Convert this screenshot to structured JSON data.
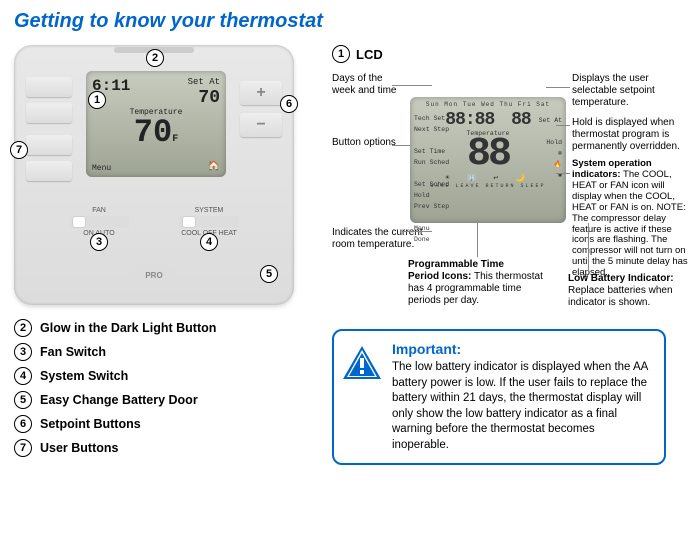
{
  "title": "Getting to know your thermostat",
  "colors": {
    "accent": "#0066cc",
    "lcd_bg": "#b6bca9",
    "body": "#000000"
  },
  "thermo_lcd": {
    "time": "6:11",
    "setat_label": "Set At",
    "setat_temp": "70",
    "temp_label": "Temperature",
    "room_temp": "70",
    "unit": "F",
    "menu": "Menu",
    "sleep_icon": "🏠"
  },
  "thermo_buttons": {
    "plus": "+",
    "minus": "−",
    "fan_label": "FAN",
    "fan_opts": "ON    AUTO",
    "system_label": "SYSTEM",
    "system_opts": "COOL OFF HEAT",
    "brand": "PRO"
  },
  "circles": {
    "c1": "1",
    "c2": "2",
    "c3": "3",
    "c4": "4",
    "c5": "5",
    "c6": "6",
    "c7": "7"
  },
  "legend": [
    {
      "n": "2",
      "label": "Glow in the Dark Light Button"
    },
    {
      "n": "3",
      "label": "Fan Switch"
    },
    {
      "n": "4",
      "label": "System Switch"
    },
    {
      "n": "5",
      "label": "Easy Change Battery Door"
    },
    {
      "n": "6",
      "label": "Setpoint Buttons"
    },
    {
      "n": "7",
      "label": "User Buttons"
    }
  ],
  "lcd_section": {
    "n": "1",
    "label": "LCD"
  },
  "lcd2": {
    "days": "Sun Mon Tue Wed Thu Fri Sat",
    "left_labels": "Tech Set\nNext Step\n\nSet Time\nRun Sched\n\nSet Sched\nHold\nPrev Step\n\nMenu\nDone",
    "seg_time": "88:88",
    "seg_set": "88",
    "setat": "Set At",
    "hold": "Hold",
    "temp_label": "Temperature",
    "big": "88",
    "period_icons": "☀  🏢  ↩  🌙",
    "period_names": "WAKE  LEAVE  RETURN  SLEEP",
    "sys_icons": "❄\n🔥\n✱",
    "batt": "▬"
  },
  "callouts": {
    "days": "Days of the\nweek and time",
    "setpoint": "Displays the user\nselectable setpoint\ntemperature.",
    "btnopt": "Button\noptions",
    "hold": "Hold is displayed when\nthermostat program is\npermanently overridden.",
    "sysop_title": "System operation\nindicators:",
    "sysop_body": " The COOL, HEAT or FAN icon will display when the COOL, HEAT or FAN is on. NOTE: The compressor delay feature is active if these icons are flashing. The compressor will not turn on until the 5 minute delay has elapsed.",
    "roomtemp": "Indicates the current\nroom temperature.",
    "period_title": "Programmable Time\nPeriod Icons:",
    "period_body": " This thermostat has 4 programmable time periods per day.",
    "lowbatt_title": "Low Battery Indicator:",
    "lowbatt_body": "\nReplace batteries when indicator is shown."
  },
  "important": {
    "heading": "Important:",
    "body": "The low battery indicator is displayed when the AA battery power is low. If the user fails to replace the battery within 21 days, the thermostat display will only show the low battery indicator as a final warning before the thermostat becomes inoperable."
  }
}
